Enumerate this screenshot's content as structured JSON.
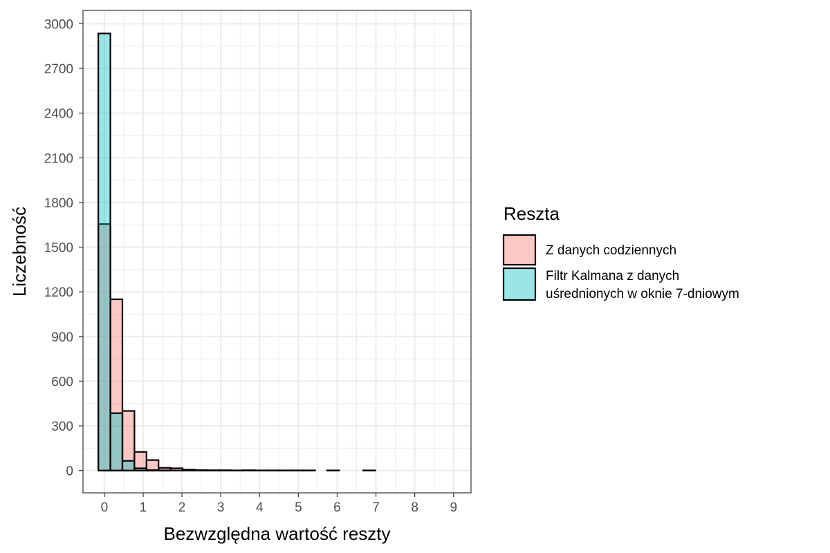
{
  "chart_data": {
    "type": "bar",
    "subtype": "overlapping histogram",
    "xlabel": "Bezwzględna wartość reszty",
    "ylabel": "Liczebność",
    "xlim": [
      -0.55,
      9.45
    ],
    "ylim": [
      -150,
      3090
    ],
    "x_ticks": [
      0,
      1,
      2,
      3,
      4,
      5,
      6,
      7,
      8,
      9
    ],
    "x_tick_labels": [
      "0",
      "1",
      "2",
      "3",
      "4",
      "5",
      "6",
      "7",
      "8",
      "9"
    ],
    "y_ticks": [
      0,
      300,
      600,
      900,
      1200,
      1500,
      1800,
      2100,
      2400,
      2700,
      3000
    ],
    "y_tick_labels": [
      "0",
      "300",
      "600",
      "900",
      "1200",
      "1500",
      "1800",
      "2100",
      "2400",
      "2700",
      "3000"
    ],
    "grid": true,
    "bin_width": 0.3103,
    "bin_start": -0.155,
    "legend": {
      "title": "Reszta",
      "position": "right",
      "entries": [
        {
          "label": "Z danych codziennych",
          "color": "#F8766D"
        },
        {
          "label_lines": [
            "Filtr Kalmana z danych",
            "uśrednionych w oknie 7-dniowym"
          ],
          "color": "#00BFC4"
        }
      ]
    },
    "series": [
      {
        "name": "Z danych codziennych",
        "color": "#F8766D",
        "fill_opacity": 0.4,
        "values": [
          1655,
          1150,
          400,
          125,
          70,
          18,
          15,
          6,
          3,
          2,
          2,
          1,
          2,
          1,
          1,
          1,
          1,
          1,
          0,
          1,
          0,
          0,
          1,
          0,
          0,
          0,
          0,
          0,
          0
        ]
      },
      {
        "name": "Filtr Kalmana z danych uśrednionych w oknie 7-dniowym",
        "color": "#00BFC4",
        "fill_opacity": 0.4,
        "values": [
          2935,
          385,
          65,
          15,
          3,
          1,
          0,
          0,
          0,
          0,
          0,
          0,
          0,
          0,
          0,
          0,
          0,
          0,
          0,
          0,
          0,
          0,
          0,
          0,
          0,
          0,
          0,
          0,
          0
        ]
      }
    ]
  }
}
